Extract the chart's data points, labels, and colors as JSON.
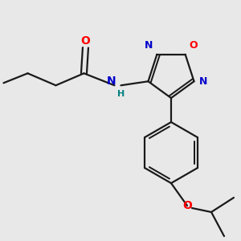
{
  "background_color": "#e8e8e8",
  "bond_color": "#1a1a1a",
  "colors": {
    "O": "#ff0000",
    "N": "#0000cc",
    "H": "#008080",
    "C": "#1a1a1a"
  },
  "figsize": [
    3.0,
    3.0
  ],
  "dpi": 100
}
